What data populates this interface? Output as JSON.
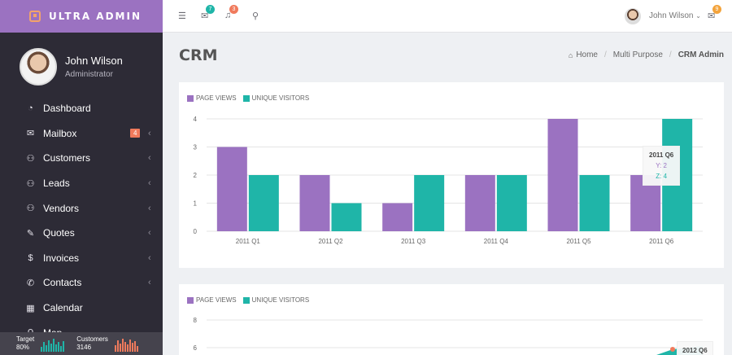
{
  "brand": {
    "name": "ULTRA ADMIN"
  },
  "profile": {
    "name": "John Wilson",
    "role": "Administrator"
  },
  "sidebar": {
    "items": [
      {
        "label": "Dashboard",
        "icon": "dashboard-icon",
        "glyph": "◔",
        "chevron": false
      },
      {
        "label": "Mailbox",
        "icon": "envelope-icon",
        "glyph": "✉",
        "chevron": true,
        "badge": "4"
      },
      {
        "label": "Customers",
        "icon": "users-icon",
        "glyph": "⚇",
        "chevron": true
      },
      {
        "label": "Leads",
        "icon": "users-icon",
        "glyph": "⚇",
        "chevron": true
      },
      {
        "label": "Vendors",
        "icon": "users-icon",
        "glyph": "⚇",
        "chevron": true
      },
      {
        "label": "Quotes",
        "icon": "edit-icon",
        "glyph": "✎",
        "chevron": true
      },
      {
        "label": "Invoices",
        "icon": "dollar-icon",
        "glyph": "$",
        "chevron": true
      },
      {
        "label": "Contacts",
        "icon": "phone-icon",
        "glyph": "✆",
        "chevron": true
      },
      {
        "label": "Calendar",
        "icon": "calendar-icon",
        "glyph": "▦",
        "chevron": false
      },
      {
        "label": "Map",
        "icon": "map-marker-icon",
        "glyph": "⚲",
        "chevron": false
      }
    ],
    "footer": {
      "target": {
        "label": "Target",
        "value": "80%",
        "color": "#1fb5a8",
        "bars": [
          6,
          12,
          8,
          14,
          10,
          16,
          9,
          12,
          7,
          13
        ]
      },
      "customers": {
        "label": "Customers",
        "value": "3146",
        "color": "#f07a5c",
        "bars": [
          8,
          14,
          10,
          16,
          12,
          9,
          15,
          11,
          13,
          7
        ]
      }
    }
  },
  "topbar": {
    "menu_icon": "menu-icon",
    "mail": {
      "icon": "envelope-icon",
      "count": "7",
      "color": "#1fb5a8"
    },
    "notifications": {
      "icon": "bell-icon",
      "count": "3",
      "color": "#f07a5c"
    },
    "search_icon": "search-icon",
    "user_name": "John Wilson",
    "chat": {
      "icon": "chat-icon",
      "count": "9",
      "color": "#f3a33b"
    }
  },
  "page": {
    "title": "CRM",
    "breadcrumb": [
      "Home",
      "Multi Purpose",
      "CRM Admin"
    ]
  },
  "colors": {
    "accent": "#9b72c1",
    "teal": "#1fb5a8"
  },
  "chart_data": [
    {
      "type": "bar",
      "categories": [
        "2011 Q1",
        "2011 Q2",
        "2011 Q3",
        "2011 Q4",
        "2011 Q5",
        "2011 Q6"
      ],
      "series": [
        {
          "name": "PAGE VIEWS",
          "values": [
            3,
            2,
            1,
            2,
            4,
            2
          ],
          "color": "#9b72c1"
        },
        {
          "name": "UNIQUE VISITORS",
          "values": [
            2,
            1,
            2,
            2,
            2,
            4
          ],
          "color": "#1fb5a8"
        }
      ],
      "yticks": [
        0,
        1,
        2,
        3,
        4
      ],
      "ylim": [
        0,
        4
      ],
      "grid": true,
      "legend": "top-left",
      "tooltip": {
        "title": "2011 Q6",
        "y": "Y: 2",
        "z": "Z: 4"
      }
    },
    {
      "type": "area",
      "series": [
        {
          "name": "PAGE VIEWS",
          "color": "#9b72c1"
        },
        {
          "name": "UNIQUE VISITORS",
          "color": "#1fb5a8"
        }
      ],
      "yticks": [
        8,
        6
      ],
      "legend": "top-left",
      "tooltip": {
        "title": "2012 Q6"
      }
    }
  ]
}
